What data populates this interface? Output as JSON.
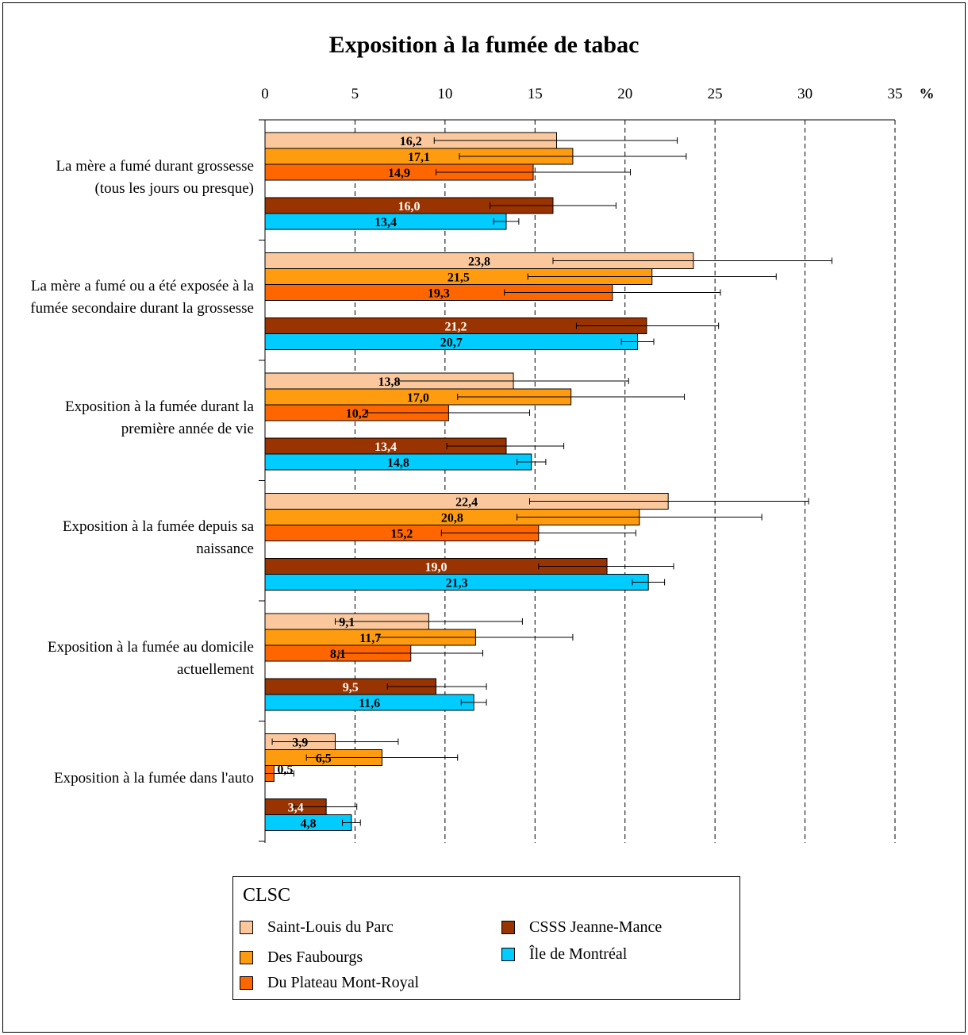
{
  "chart_data": {
    "type": "bar",
    "orientation": "horizontal",
    "title": "Exposition à la fumée de tabac",
    "unit_label": "%",
    "xlim": [
      0,
      35
    ],
    "x_ticks": [
      0,
      5,
      10,
      15,
      20,
      25,
      30,
      35
    ],
    "gridlines": "dashed vertical",
    "categories": [
      "La mère a fumé durant grossesse (tous les jours ou presque)",
      "La mère a fumé ou a été exposée à la fumée secondaire durant la grossesse",
      "Exposition à la fumée durant la première année de vie",
      "Exposition à la fumée depuis sa naissance",
      "Exposition à la fumée au domicile actuellement",
      "Exposition à la fumée dans l'auto"
    ],
    "series": [
      {
        "name": "Saint-Louis du Parc",
        "color": "#FBC89E",
        "values": [
          16.2,
          23.8,
          13.8,
          22.4,
          9.1,
          3.9
        ],
        "value_labels": [
          "16,2",
          "23,8",
          "13,8",
          "22,4",
          "9,1",
          "3,9"
        ],
        "ci": [
          [
            9.4,
            22.9
          ],
          [
            16.0,
            31.5
          ],
          [
            7.4,
            20.2
          ],
          [
            14.7,
            30.2
          ],
          [
            3.9,
            14.3
          ],
          [
            0.4,
            7.4
          ]
        ]
      },
      {
        "name": "Des Faubourgs",
        "color": "#FF9B0F",
        "values": [
          17.1,
          21.5,
          17.0,
          20.8,
          11.7,
          6.5
        ],
        "value_labels": [
          "17,1",
          "21,5",
          "17,0",
          "20,8",
          "11,7",
          "6,5"
        ],
        "ci": [
          [
            10.8,
            23.4
          ],
          [
            14.6,
            28.4
          ],
          [
            10.7,
            23.3
          ],
          [
            14.0,
            27.6
          ],
          [
            6.3,
            17.1
          ],
          [
            2.3,
            10.7
          ]
        ]
      },
      {
        "name": "Du Plateau Mont-Royal",
        "color": "#FF6600",
        "values": [
          14.9,
          19.3,
          10.2,
          15.2,
          8.1,
          0.5
        ],
        "value_labels": [
          "14,9",
          "19,3",
          "10,2",
          "15,2",
          "8,1",
          "0,5"
        ],
        "ci": [
          [
            9.5,
            20.3
          ],
          [
            13.3,
            25.3
          ],
          [
            5.7,
            14.7
          ],
          [
            9.8,
            20.6
          ],
          [
            4.1,
            12.1
          ],
          [
            0.0,
            1.6
          ]
        ]
      },
      {
        "name": "CSSS Jeanne-Mance",
        "color": "#993300",
        "values": [
          16.0,
          21.2,
          13.4,
          19.0,
          9.5,
          3.4
        ],
        "value_labels": [
          "16,0",
          "21,2",
          "13,4",
          "19,0",
          "9,5",
          "3,4"
        ],
        "ci": [
          [
            12.5,
            19.5
          ],
          [
            17.3,
            25.2
          ],
          [
            10.1,
            16.6
          ],
          [
            15.2,
            22.7
          ],
          [
            6.8,
            12.3
          ],
          [
            1.6,
            5.1
          ]
        ]
      },
      {
        "name": "Île de Montréal",
        "color": "#00CCFF",
        "values": [
          13.4,
          20.7,
          14.8,
          21.3,
          11.6,
          4.8
        ],
        "value_labels": [
          "13,4",
          "20,7",
          "14,8",
          "21,3",
          "11,6",
          "4,8"
        ],
        "ci": [
          [
            12.7,
            14.1
          ],
          [
            19.8,
            21.6
          ],
          [
            14.0,
            15.6
          ],
          [
            20.4,
            22.2
          ],
          [
            10.9,
            12.3
          ],
          [
            4.3,
            5.3
          ]
        ]
      }
    ],
    "legend": {
      "title": "CLSC",
      "position": "bottom"
    }
  }
}
